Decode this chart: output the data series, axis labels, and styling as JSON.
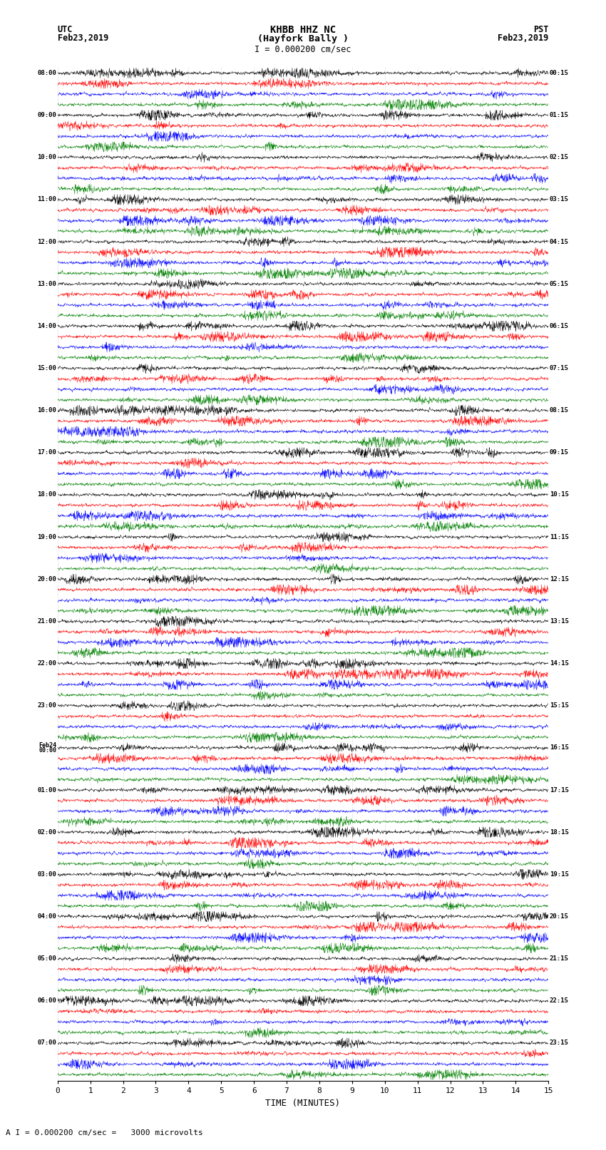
{
  "title_line1": "KHBB HHZ NC",
  "title_line2": "(Hayfork Bally )",
  "scale_text": "I = 0.000200 cm/sec",
  "footer_text": "A I = 0.000200 cm/sec =   3000 microvolts",
  "left_label_top": "UTC",
  "left_label_date": "Feb23,2019",
  "right_label_top": "PST",
  "right_label_date": "Feb23,2019",
  "xlabel": "TIME (MINUTES)",
  "xlim": [
    0,
    15
  ],
  "xticks": [
    0,
    1,
    2,
    3,
    4,
    5,
    6,
    7,
    8,
    9,
    10,
    11,
    12,
    13,
    14,
    15
  ],
  "colors": [
    "black",
    "red",
    "blue",
    "green"
  ],
  "utc_times_left": [
    "08:00",
    "",
    "",
    "",
    "09:00",
    "",
    "",
    "",
    "10:00",
    "",
    "",
    "",
    "11:00",
    "",
    "",
    "",
    "12:00",
    "",
    "",
    "",
    "13:00",
    "",
    "",
    "",
    "14:00",
    "",
    "",
    "",
    "15:00",
    "",
    "",
    "",
    "16:00",
    "",
    "",
    "",
    "17:00",
    "",
    "",
    "",
    "18:00",
    "",
    "",
    "",
    "19:00",
    "",
    "",
    "",
    "20:00",
    "",
    "",
    "",
    "21:00",
    "",
    "",
    "",
    "22:00",
    "",
    "",
    "",
    "23:00",
    "",
    "",
    "",
    "Feb24\n00:00",
    "",
    "",
    "",
    "01:00",
    "",
    "",
    "",
    "02:00",
    "",
    "",
    "",
    "03:00",
    "",
    "",
    "",
    "04:00",
    "",
    "",
    "",
    "05:00",
    "",
    "",
    "",
    "06:00",
    "",
    "",
    "",
    "07:00",
    "",
    "",
    ""
  ],
  "pst_times_right": [
    "00:15",
    "",
    "",
    "",
    "01:15",
    "",
    "",
    "",
    "02:15",
    "",
    "",
    "",
    "03:15",
    "",
    "",
    "",
    "04:15",
    "",
    "",
    "",
    "05:15",
    "",
    "",
    "",
    "06:15",
    "",
    "",
    "",
    "07:15",
    "",
    "",
    "",
    "08:15",
    "",
    "",
    "",
    "09:15",
    "",
    "",
    "",
    "10:15",
    "",
    "",
    "",
    "11:15",
    "",
    "",
    "",
    "12:15",
    "",
    "",
    "",
    "13:15",
    "",
    "",
    "",
    "14:15",
    "",
    "",
    "",
    "15:15",
    "",
    "",
    "",
    "16:15",
    "",
    "",
    "",
    "17:15",
    "",
    "",
    "",
    "18:15",
    "",
    "",
    "",
    "19:15",
    "",
    "",
    "",
    "20:15",
    "",
    "",
    "",
    "21:15",
    "",
    "",
    "",
    "22:15",
    "",
    "",
    "",
    "23:15",
    "",
    "",
    ""
  ],
  "n_rows": 96,
  "n_hours": 24,
  "traces_per_hour": 4,
  "bg_color": "white",
  "fig_width": 8.5,
  "fig_height": 16.13
}
